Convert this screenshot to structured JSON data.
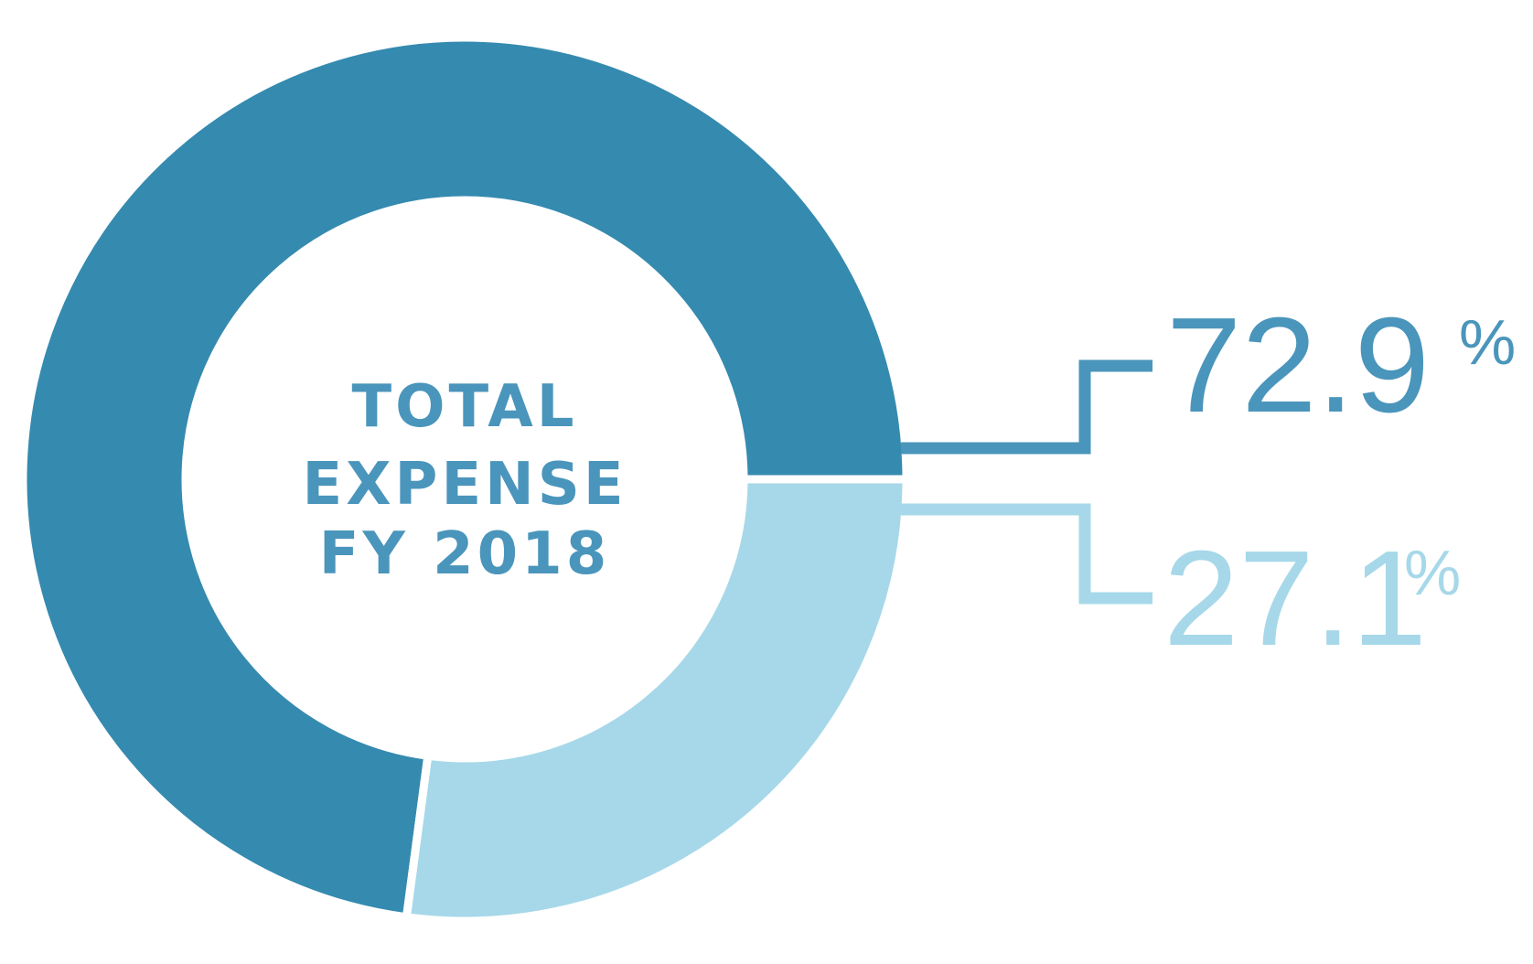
{
  "chart_data": {
    "type": "pie",
    "title": "",
    "center_label": [
      "TOTAL",
      "EXPENSE",
      "FY 2018"
    ],
    "slices": [
      {
        "label": "",
        "value": 72.9,
        "display": "72.9",
        "unit": "%",
        "color": "#358AAF"
      },
      {
        "label": "",
        "value": 27.1,
        "display": "27.1",
        "unit": "%",
        "color": "#A6D8E9"
      }
    ],
    "center_text_color": "#4A95BB"
  }
}
